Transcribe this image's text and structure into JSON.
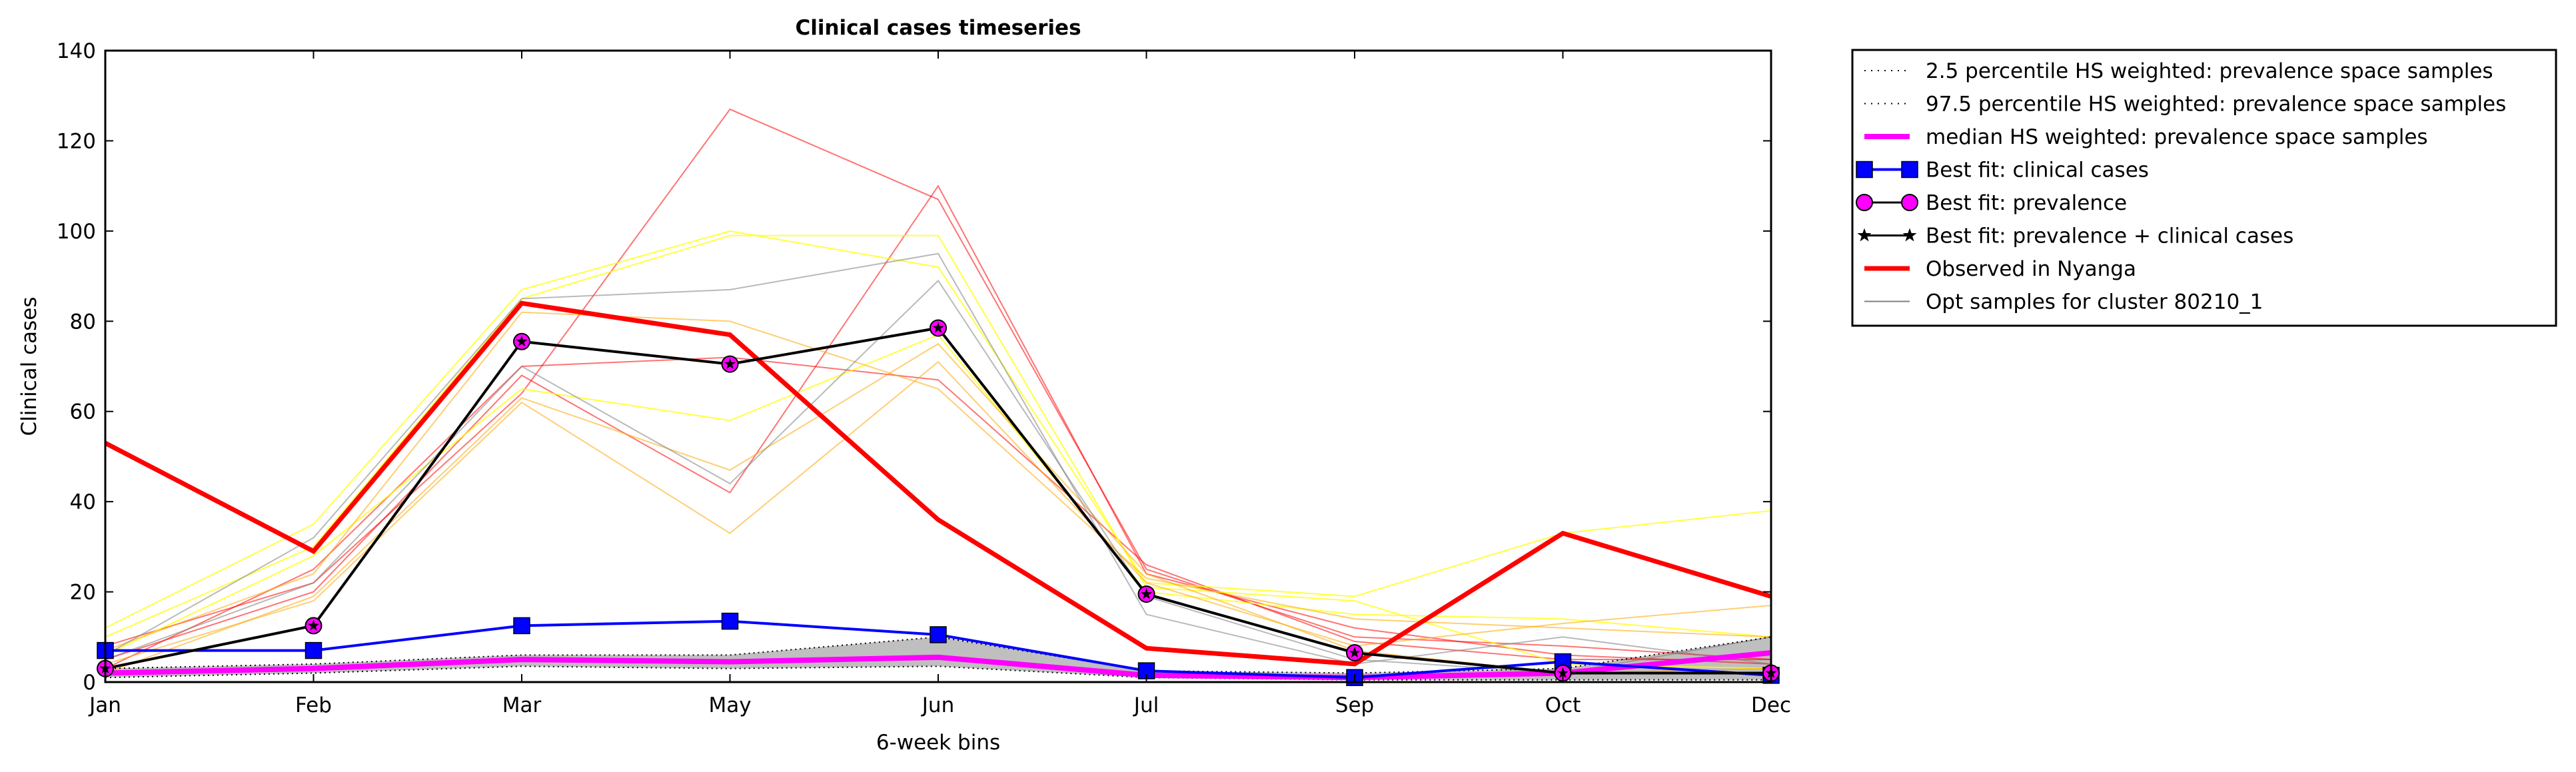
{
  "chart_data": {
    "type": "line",
    "title": "Clinical cases timeseries",
    "xlabel": "6-week bins",
    "ylabel": "Clinical cases",
    "categories": [
      "Jan",
      "Feb",
      "Mar",
      "May",
      "Jun",
      "Jul",
      "Sep",
      "Oct",
      "Dec"
    ],
    "ylim": [
      0,
      140
    ],
    "yticks": [
      0,
      20,
      40,
      60,
      80,
      100,
      120,
      140
    ],
    "grid": false,
    "legend_position": "outside-top-right",
    "band": {
      "color": "#bfbfbf",
      "lower": [
        1,
        2,
        3.5,
        3,
        3.5,
        1,
        0.5,
        0.5,
        0.5
      ],
      "upper": [
        3,
        4,
        6,
        6,
        10,
        2.5,
        2,
        3,
        10
      ]
    },
    "samples": {
      "name": "Opt samples for cluster 80210_1",
      "lines": [
        {
          "color": "#ff0000",
          "values": [
            8,
            22,
            64,
            127,
            107,
            25,
            10,
            8,
            5
          ]
        },
        {
          "color": "#ff0000",
          "values": [
            5,
            20,
            68,
            42,
            110,
            24,
            12,
            6,
            4
          ]
        },
        {
          "color": "#ff0000",
          "values": [
            3,
            25,
            70,
            72,
            67,
            26,
            9,
            5,
            5
          ]
        },
        {
          "color": "#ffff00",
          "values": [
            12,
            35,
            87,
            100,
            92,
            22,
            19,
            33,
            38
          ]
        },
        {
          "color": "#ffff00",
          "values": [
            10,
            30,
            85,
            99,
            99,
            21,
            18,
            4,
            3
          ]
        },
        {
          "color": "#ffff00",
          "values": [
            6,
            28,
            65,
            58,
            77,
            20,
            15,
            14,
            10
          ]
        },
        {
          "color": "#ffa500",
          "values": [
            4,
            18,
            62,
            33,
            71,
            22,
            8,
            13,
            17
          ]
        },
        {
          "color": "#ffa500",
          "values": [
            7,
            24,
            82,
            80,
            65,
            23,
            14,
            12,
            10
          ]
        },
        {
          "color": "#ffa500",
          "values": [
            2,
            19,
            63,
            47,
            75,
            24,
            7,
            2,
            3
          ]
        },
        {
          "color": "#808080",
          "values": [
            6,
            32,
            85,
            87,
            95,
            15,
            4,
            10,
            4
          ]
        },
        {
          "color": "#808080",
          "values": [
            5,
            22,
            70,
            44,
            89,
            19,
            5,
            2,
            10
          ]
        }
      ]
    },
    "series": [
      {
        "name": "2.5 percentile HS weighted: prevalence space samples",
        "style": "dotted",
        "color": "#000000",
        "values": [
          1,
          2,
          3.5,
          3,
          3.5,
          1,
          0.5,
          0.5,
          0.5
        ]
      },
      {
        "name": "97.5 percentile HS weighted: prevalence space samples",
        "style": "dotted",
        "color": "#000000",
        "values": [
          3,
          4,
          6,
          6,
          10,
          2.5,
          2,
          3,
          10
        ]
      },
      {
        "name": "median HS weighted: prevalence space samples",
        "style": "thick",
        "color": "#ff00ff",
        "values": [
          2,
          3,
          5,
          4.5,
          5.5,
          1.5,
          1,
          2,
          6.5
        ]
      },
      {
        "name": "Best fit: clinical cases",
        "style": "square",
        "color": "#0000ff",
        "values": [
          7,
          7,
          12.5,
          13.5,
          10.5,
          2.5,
          1,
          4.5,
          1.5
        ]
      },
      {
        "name": "Best fit: prevalence",
        "style": "circle",
        "color": "#ff00ff",
        "values": [
          3,
          12.5,
          75.5,
          70.5,
          78.5,
          19.5,
          6.5,
          2,
          2
        ]
      },
      {
        "name": "Best fit: prevalence + clinical cases",
        "style": "star",
        "color": "#000000",
        "values": [
          3,
          12.5,
          75.5,
          70.5,
          78.5,
          19.5,
          6.5,
          2,
          2
        ]
      },
      {
        "name": "Observed in Nyanga",
        "style": "thick-line",
        "color": "#ff0000",
        "values": [
          53,
          29,
          84,
          77,
          36,
          7.5,
          4,
          33,
          19
        ]
      }
    ]
  }
}
